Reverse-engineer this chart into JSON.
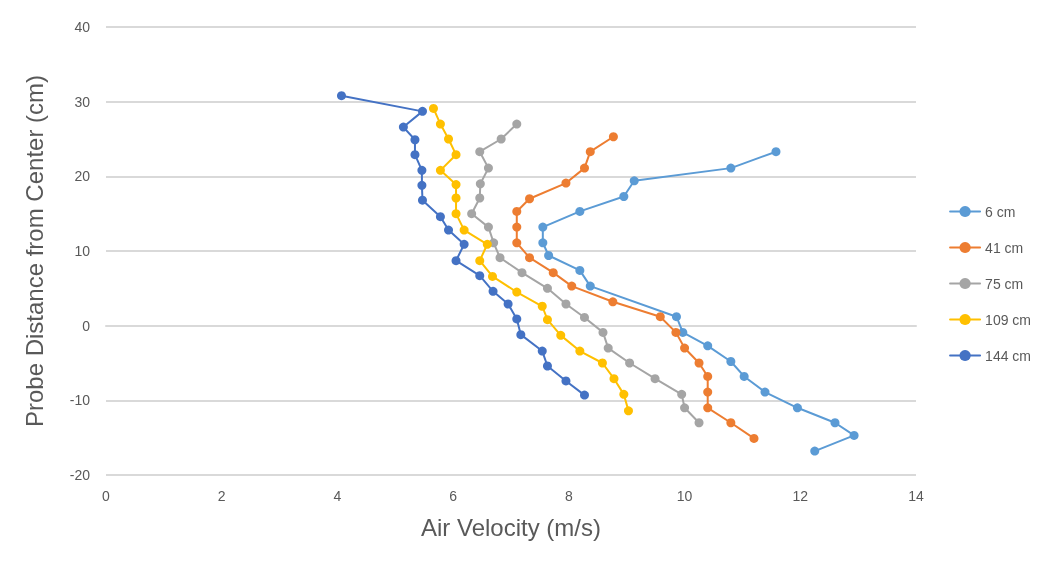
{
  "chart_data": {
    "type": "line",
    "xlabel": "Air Velocity (m/s)",
    "ylabel": "Probe Distance from Center (cm)",
    "xlim": [
      0,
      14
    ],
    "xticks": [
      0,
      2,
      4,
      6,
      8,
      10,
      12,
      14
    ],
    "ylim": [
      -20,
      40
    ],
    "yticks": [
      -20,
      -10,
      0,
      10,
      20,
      30,
      40
    ],
    "grid": "y",
    "legend": "right",
    "marker": "circle",
    "line_style": "solid",
    "series": [
      {
        "name": "6 cm",
        "color": "#5b9bd5",
        "x": [
          11.58,
          10.8,
          9.13,
          8.95,
          8.19,
          7.55,
          7.55,
          7.65,
          8.19,
          8.37,
          9.86,
          9.97,
          10.4,
          10.8,
          11.03,
          11.39,
          11.95,
          12.6,
          12.93,
          12.25
        ],
        "values": [
          23.3,
          21.1,
          19.4,
          17.3,
          15.3,
          13.2,
          11.1,
          9.4,
          7.4,
          5.3,
          1.2,
          -0.9,
          -2.7,
          -4.8,
          -6.8,
          -8.9,
          -11,
          -13,
          -14.7,
          -16.8
        ]
      },
      {
        "name": "41 cm",
        "color": "#ed7d31",
        "x": [
          8.77,
          8.37,
          8.27,
          7.95,
          7.32,
          7.1,
          7.1,
          7.1,
          7.32,
          7.73,
          8.05,
          8.76,
          9.58,
          9.85,
          10.0,
          10.25,
          10.4,
          10.4,
          10.4,
          10.8,
          11.2
        ],
        "values": [
          25.3,
          23.3,
          21.1,
          19.1,
          17,
          15.3,
          13.2,
          11.1,
          9.1,
          7.1,
          5.3,
          3.2,
          1.2,
          -0.9,
          -3,
          -5,
          -6.8,
          -8.9,
          -11,
          -13,
          -15.1
        ]
      },
      {
        "name": "75 cm",
        "color": "#a5a5a5",
        "x": [
          7.1,
          6.83,
          6.46,
          6.61,
          6.47,
          6.46,
          6.32,
          6.61,
          6.7,
          6.81,
          7.19,
          7.63,
          7.95,
          8.27,
          8.59,
          8.68,
          9.05,
          9.49,
          9.95,
          10.0,
          10.25
        ],
        "values": [
          27,
          25,
          23.3,
          21.1,
          19,
          17.1,
          15,
          13.2,
          11.1,
          9.1,
          7.1,
          5,
          2.9,
          1.1,
          -0.9,
          -3,
          -5,
          -7.1,
          -9.2,
          -11,
          -13
        ]
      },
      {
        "name": "109 cm",
        "color": "#ffc000",
        "x": [
          5.66,
          5.78,
          5.92,
          6.05,
          5.78,
          6.05,
          6.05,
          6.05,
          6.19,
          6.59,
          6.46,
          6.68,
          7.1,
          7.54,
          7.63,
          7.86,
          8.19,
          8.58,
          8.78,
          8.95,
          9.03
        ],
        "values": [
          29.1,
          27,
          25,
          22.9,
          20.8,
          18.9,
          17.1,
          15,
          12.8,
          10.9,
          8.7,
          6.6,
          4.5,
          2.6,
          0.8,
          -1.3,
          -3.4,
          -5,
          -7.1,
          -9.2,
          -11.4
        ]
      },
      {
        "name": "144 cm",
        "color": "#4472c4",
        "x": [
          4.07,
          5.47,
          5.14,
          5.34,
          5.34,
          5.46,
          5.46,
          5.47,
          5.78,
          5.92,
          6.19,
          6.05,
          6.46,
          6.69,
          6.95,
          7.1,
          7.17,
          7.54,
          7.63,
          7.95,
          8.27
        ],
        "values": [
          30.8,
          28.7,
          26.6,
          24.9,
          22.9,
          20.8,
          18.8,
          16.8,
          14.6,
          12.8,
          10.9,
          8.7,
          6.7,
          4.6,
          2.9,
          0.9,
          -1.2,
          -3.4,
          -5.4,
          -7.4,
          -9.3
        ]
      }
    ]
  }
}
